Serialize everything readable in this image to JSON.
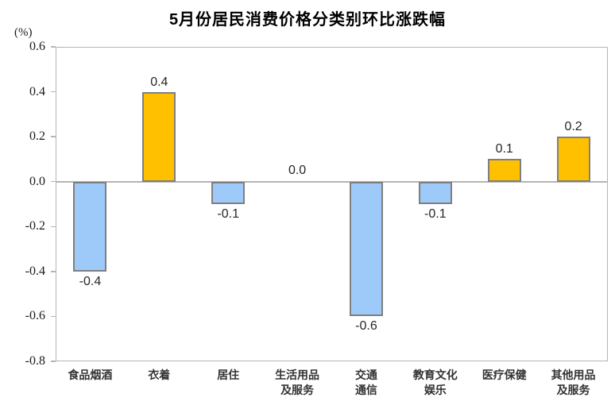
{
  "title": "5月份居民消费价格分类别环比涨跌幅",
  "chart_data": {
    "type": "bar",
    "title": "5月份居民消费价格分类别环比涨跌幅",
    "xlabel": "",
    "ylabel": "(%)",
    "categories": [
      "食品烟酒",
      "衣着",
      "居住",
      "生活用品及服务",
      "交通通信",
      "教育文化娱乐",
      "医疗保健",
      "其他用品及服务"
    ],
    "category_label_lines": [
      [
        "食品烟酒"
      ],
      [
        "衣着"
      ],
      [
        "居住"
      ],
      [
        "生活用品",
        "及服务"
      ],
      [
        "交通",
        "通信"
      ],
      [
        "教育文化",
        "娱乐"
      ],
      [
        "医疗保健"
      ],
      [
        "其他用品",
        "及服务"
      ]
    ],
    "values": [
      -0.4,
      0.4,
      -0.1,
      0.0,
      -0.6,
      -0.1,
      0.1,
      0.2
    ],
    "data_labels": [
      "-0.4",
      "0.4",
      "-0.1",
      "0.0",
      "-0.6",
      "-0.1",
      "0.1",
      "0.2"
    ],
    "ylim": [
      -0.8,
      0.6
    ],
    "yticks": [
      "0.6",
      "0.4",
      "0.2",
      "0.0",
      "-0.2",
      "-0.4",
      "-0.6",
      "-0.8"
    ],
    "grid": false,
    "legend": "none",
    "colors": {
      "positive_bar": "#FFC000",
      "negative_bar": "#9DCAF8",
      "bar_border": "#7F7F7F",
      "axis": "#B5B5B5"
    }
  }
}
